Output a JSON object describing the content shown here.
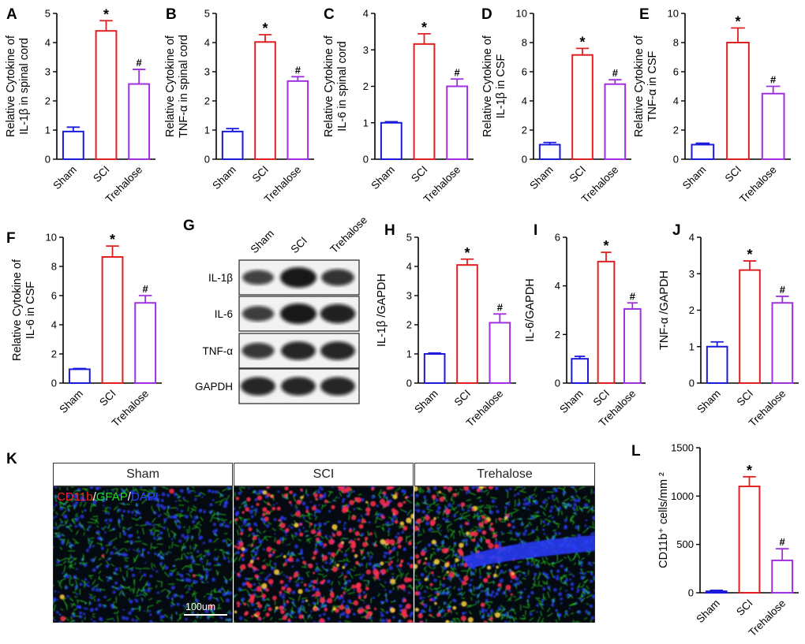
{
  "colors": {
    "sham": "#1a1adb",
    "sci": "#e02020",
    "trehalose": "#a030e0",
    "axis": "#000000"
  },
  "panel_letters": [
    "A",
    "B",
    "C",
    "D",
    "E",
    "F",
    "G",
    "H",
    "I",
    "J",
    "K",
    "L"
  ],
  "chart_data": [
    {
      "id": "A",
      "type": "bar",
      "categories": [
        "Sham",
        "SCI",
        "Trehalose"
      ],
      "values": [
        0.95,
        4.4,
        2.58
      ],
      "errors": [
        0.15,
        0.35,
        0.5
      ],
      "marks": [
        "",
        "*",
        "#"
      ],
      "ylabel": [
        "Relative Cytokine of",
        "IL-1β  in spinal cord"
      ],
      "ylim": [
        0,
        5
      ],
      "yticks": [
        0,
        1,
        2,
        3,
        4,
        5
      ]
    },
    {
      "id": "B",
      "type": "bar",
      "categories": [
        "Sham",
        "SCI",
        "Trehalose"
      ],
      "values": [
        0.95,
        4.02,
        2.68
      ],
      "errors": [
        0.1,
        0.25,
        0.15
      ],
      "marks": [
        "",
        "*",
        "#"
      ],
      "ylabel": [
        "Relative Cytokine of",
        "TNF-α  in spinal cord"
      ],
      "ylim": [
        0,
        5
      ],
      "yticks": [
        0,
        1,
        2,
        3,
        4,
        5
      ]
    },
    {
      "id": "C",
      "type": "bar",
      "categories": [
        "Sham",
        "SCI",
        "Trehalose"
      ],
      "values": [
        1.0,
        3.16,
        2.0
      ],
      "errors": [
        0.03,
        0.28,
        0.2
      ],
      "marks": [
        "",
        "*",
        "#"
      ],
      "ylabel": [
        "Relative Cytokine of",
        "IL-6 in spinal cord"
      ],
      "ylim": [
        0,
        4
      ],
      "yticks": [
        0,
        1,
        2,
        3,
        4
      ]
    },
    {
      "id": "D",
      "type": "bar",
      "categories": [
        "Sham",
        "SCI",
        "Trehalose"
      ],
      "values": [
        1.0,
        7.15,
        5.15
      ],
      "errors": [
        0.15,
        0.45,
        0.3
      ],
      "marks": [
        "",
        "*",
        "#"
      ],
      "ylabel": [
        "Relative Cytokine of",
        "IL-1β  in CSF"
      ],
      "ylim": [
        0,
        10
      ],
      "yticks": [
        0,
        2,
        4,
        6,
        8,
        10
      ]
    },
    {
      "id": "E",
      "type": "bar",
      "categories": [
        "Sham",
        "SCI",
        "Trehalose"
      ],
      "values": [
        1.0,
        8.0,
        4.5
      ],
      "errors": [
        0.1,
        1.0,
        0.5
      ],
      "marks": [
        "",
        "*",
        "#"
      ],
      "ylabel": [
        "Relative Cytokine of",
        "TNF-α  in CSF"
      ],
      "ylim": [
        0,
        10
      ],
      "yticks": [
        0,
        2,
        4,
        6,
        8,
        10
      ]
    },
    {
      "id": "F",
      "type": "bar",
      "categories": [
        "Sham",
        "SCI",
        "Trehalose"
      ],
      "values": [
        0.95,
        8.65,
        5.5
      ],
      "errors": [
        0.05,
        0.75,
        0.5
      ],
      "marks": [
        "",
        "*",
        "#"
      ],
      "ylabel": [
        "Relative Cytokine of",
        "IL-6 in CSF"
      ],
      "ylim": [
        0,
        10
      ],
      "yticks": [
        0,
        2,
        4,
        6,
        8,
        10
      ]
    },
    {
      "id": "H",
      "type": "bar",
      "categories": [
        "Sham",
        "SCI",
        "Trehalose"
      ],
      "values": [
        1.0,
        4.05,
        2.07
      ],
      "errors": [
        0.03,
        0.2,
        0.3
      ],
      "marks": [
        "",
        "*",
        "#"
      ],
      "ylabel": [
        "IL-1β /GAPDH"
      ],
      "ylim": [
        0,
        5
      ],
      "yticks": [
        0,
        1,
        2,
        3,
        4,
        5
      ]
    },
    {
      "id": "I",
      "type": "bar",
      "categories": [
        "Sham",
        "SCI",
        "Trehalose"
      ],
      "values": [
        1.0,
        5.0,
        3.05
      ],
      "errors": [
        0.1,
        0.38,
        0.25
      ],
      "marks": [
        "",
        "*",
        "#"
      ],
      "ylabel": [
        "IL-6/GAPDH"
      ],
      "ylim": [
        0,
        6
      ],
      "yticks": [
        0,
        2,
        4,
        6
      ]
    },
    {
      "id": "J",
      "type": "bar",
      "categories": [
        "Sham",
        "SCI",
        "Trehalose"
      ],
      "values": [
        1.0,
        3.1,
        2.2
      ],
      "errors": [
        0.13,
        0.25,
        0.18
      ],
      "marks": [
        "",
        "*",
        "#"
      ],
      "ylabel": [
        "TNF-α /GAPDH"
      ],
      "ylim": [
        0,
        4
      ],
      "yticks": [
        0,
        1,
        2,
        3,
        4
      ]
    },
    {
      "id": "L",
      "type": "bar",
      "categories": [
        "Sham",
        "SCI",
        "Trehalose"
      ],
      "values": [
        15,
        1100,
        335
      ],
      "errors": [
        10,
        100,
        120
      ],
      "marks": [
        "",
        "*",
        "#"
      ],
      "ylabel": [
        "CD11b⁺ cells/mm ²"
      ],
      "ylim": [
        0,
        1500
      ],
      "yticks": [
        0,
        500,
        1000,
        1500
      ]
    }
  ],
  "western_blot": {
    "columns": [
      "Sham",
      "SCI",
      "Trehalose"
    ],
    "rows": [
      {
        "label": "IL-1β",
        "intensity": [
          0.55,
          1.0,
          0.7
        ]
      },
      {
        "label": "IL-6",
        "intensity": [
          0.6,
          1.0,
          0.9
        ]
      },
      {
        "label": "TNF-α",
        "intensity": [
          0.65,
          0.85,
          0.85
        ]
      },
      {
        "label": "GAPDH",
        "intensity": [
          0.85,
          0.85,
          0.85
        ]
      }
    ]
  },
  "immunofluorescence": {
    "columns": [
      "Sham",
      "SCI",
      "Trehalose"
    ],
    "stain_labels": [
      {
        "text": "CD11b",
        "color": "#ff2020"
      },
      {
        "text": "/",
        "color": "#ffffff"
      },
      {
        "text": "GFAP",
        "color": "#20e020"
      },
      {
        "text": "/",
        "color": "#ffffff"
      },
      {
        "text": "DAPI",
        "color": "#3040ff"
      }
    ],
    "scale_bar": "100um"
  }
}
